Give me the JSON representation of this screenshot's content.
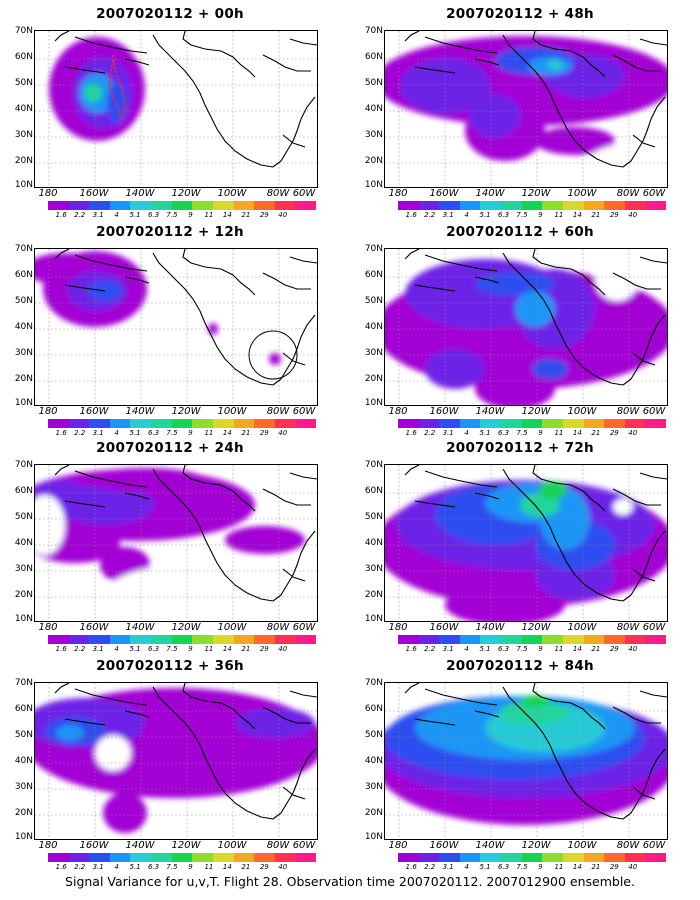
{
  "figure": {
    "caption": "Signal Variance for u,v,T. Flight 28. Observation time 2007020112. 2007012900 ensemble."
  },
  "colorbar": {
    "labels": [
      "1.6",
      "2.2",
      "3.1",
      "4",
      "5.1",
      "6.3",
      "7.5",
      "9",
      "11",
      "14",
      "21",
      "29",
      "40"
    ],
    "colors": [
      "#a300d6",
      "#6d22e8",
      "#2f4ef0",
      "#1a96f6",
      "#28cbd6",
      "#22d59c",
      "#16d353",
      "#8fdc2c",
      "#d9d82a",
      "#f5a623",
      "#ff6a2a",
      "#ff2f56",
      "#ff1a8a"
    ]
  },
  "axes": {
    "y_labels": [
      "70N",
      "60N",
      "50N",
      "40N",
      "30N",
      "20N",
      "10N"
    ],
    "x_labels": [
      "180",
      "160W",
      "140W",
      "120W",
      "100W",
      "80W",
      "60W"
    ]
  },
  "panels": [
    {
      "id": "p00",
      "title": "2007020112 + 00h"
    },
    {
      "id": "p48",
      "title": "2007020112 + 48h"
    },
    {
      "id": "p12",
      "title": "2007020112 + 12h"
    },
    {
      "id": "p60",
      "title": "2007020112 + 60h"
    },
    {
      "id": "p24",
      "title": "2007020112 + 24h"
    },
    {
      "id": "p72",
      "title": "2007020112 + 72h"
    },
    {
      "id": "p36",
      "title": "2007020112 + 36h"
    },
    {
      "id": "p84",
      "title": "2007020112 + 84h"
    }
  ]
}
